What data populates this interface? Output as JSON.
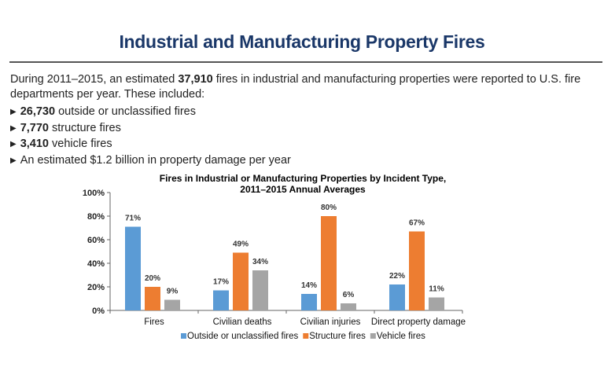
{
  "header": {
    "title": "Industrial and Manufacturing Property Fires"
  },
  "intro": {
    "prefix": "During 2011–2015, an estimated ",
    "total": "37,910",
    "suffix": " fires in industrial and manufacturing properties were reported to U.S. fire departments per year. These included:"
  },
  "bullets": [
    {
      "bold": "26,730",
      "text": " outside or unclassified fires"
    },
    {
      "bold": "7,770",
      "text": " structure fires"
    },
    {
      "bold": "3,410",
      "text": " vehicle fires"
    },
    {
      "bold": "",
      "text": "An estimated $1.2 billion in property damage per year"
    }
  ],
  "icons": {
    "bullet": "triangle-right-icon"
  },
  "chart_data": {
    "type": "bar",
    "title": "Fires in Industrial or Manufacturing Properties by Incident Type,",
    "subtitle": "2011–2015 Annual Averages",
    "categories": [
      "Fires",
      "Civilian deaths",
      "Civilian injuries",
      "Direct property damage"
    ],
    "series": [
      {
        "name": "Outside or unclassified fires",
        "color": "#5b9bd5",
        "values": [
          71,
          17,
          14,
          22
        ]
      },
      {
        "name": "Structure fires",
        "color": "#ed7d31",
        "values": [
          20,
          49,
          80,
          67
        ]
      },
      {
        "name": "Vehicle fires",
        "color": "#a5a5a5",
        "values": [
          9,
          34,
          6,
          11
        ]
      }
    ],
    "ylim": [
      0,
      100
    ],
    "yticks": [
      "0%",
      "20%",
      "40%",
      "60%",
      "80%",
      "100%"
    ],
    "value_suffix": "%",
    "grid": false,
    "legend": "bottom"
  }
}
